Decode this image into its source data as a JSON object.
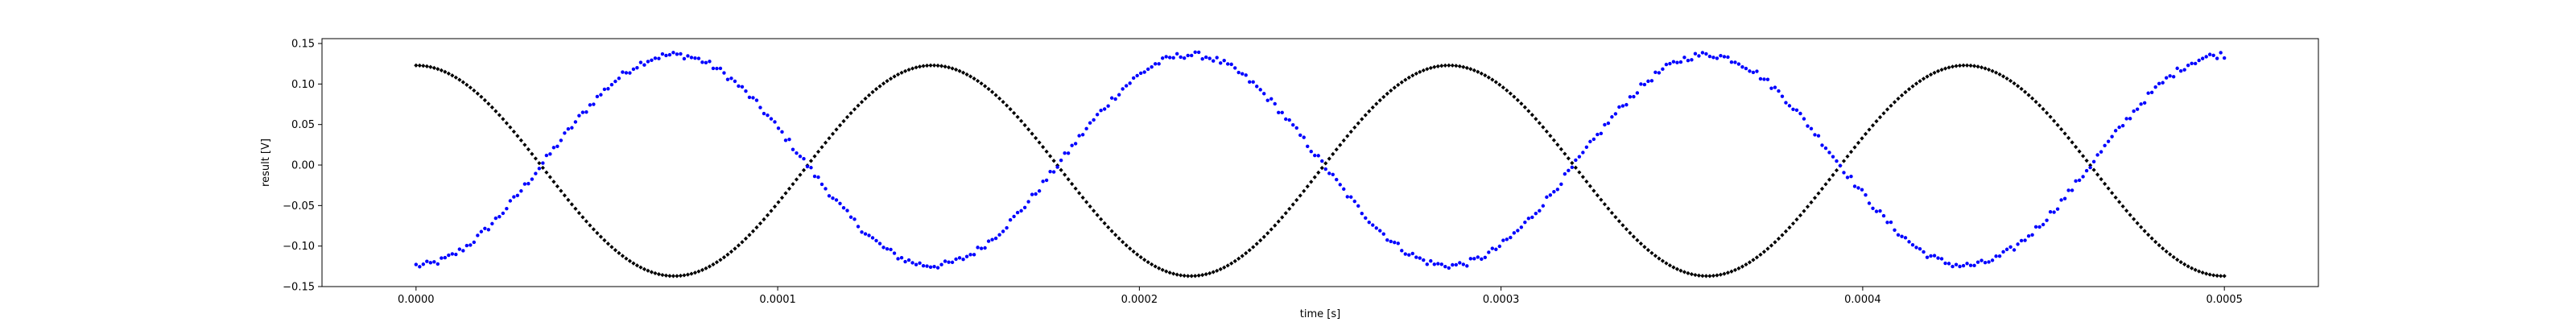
{
  "chart_data": {
    "type": "scatter",
    "xlabel": "time [s]",
    "ylabel": "result [V]",
    "xlim": [
      -2.6e-05,
      0.000526
    ],
    "ylim": [
      -0.15,
      0.156
    ],
    "grid": false,
    "x_ticks": [
      0.0,
      0.0001,
      0.0002,
      0.0003,
      0.0004,
      0.0005
    ],
    "x_tick_labels": [
      "0.0000",
      "0.0001",
      "0.0002",
      "0.0003",
      "0.0004",
      "0.0005"
    ],
    "y_ticks": [
      -0.15,
      -0.1,
      -0.05,
      0.0,
      0.05,
      0.1,
      0.15
    ],
    "y_tick_labels": [
      "−0.15",
      "−0.10",
      "−0.05",
      "0.00",
      "0.05",
      "0.10",
      "0.15"
    ],
    "x_range": [
      0.0,
      0.0005
    ],
    "samples": 500,
    "colors": {
      "black_series": "#000000",
      "blue_series": "#0000ff"
    },
    "series": [
      {
        "color": "#000000",
        "marker": "diamond",
        "waveform": "cosine",
        "amplitude": 0.13,
        "offset": -0.007,
        "period": 0.0001428,
        "phase": 0.0,
        "noise": 0.0
      },
      {
        "color": "#0000ff",
        "marker": "dot",
        "waveform": "cosine",
        "amplitude": 0.13,
        "offset": 0.006,
        "period": 0.0001428,
        "phase": 3.14159,
        "noise": 0.004
      }
    ]
  }
}
